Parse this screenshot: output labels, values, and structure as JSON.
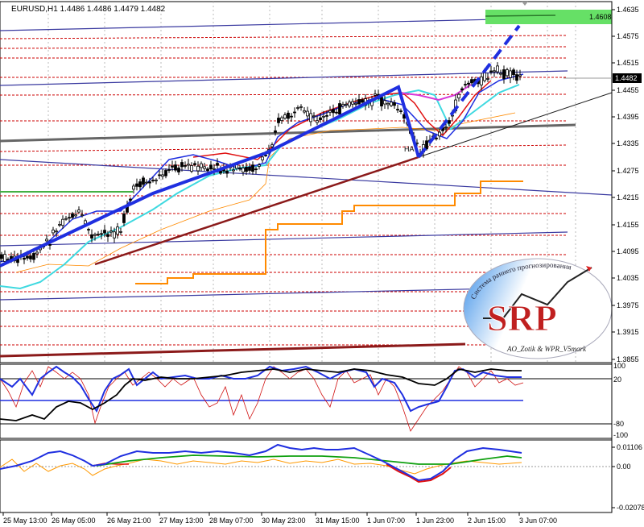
{
  "header": {
    "symbol_info": "EURUSD,H1  1.4486 1.4486 1.4479 1.4482"
  },
  "price_scale": {
    "ticks": [
      "1.4635",
      "1.4575",
      "1.4515",
      "1.4455",
      "1.4395",
      "1.4335",
      "1.4275",
      "1.4215",
      "1.4155",
      "1.4095",
      "1.4035",
      "1.3975",
      "1.3915",
      "1.3855"
    ],
    "current_price": "1.4482",
    "green_level": "1.4608"
  },
  "rsi_panel": {
    "ticks": [
      "100",
      "20",
      "-80",
      "-100"
    ]
  },
  "macd_panel": {
    "ticks": [
      "0.01106",
      "0.00",
      "-0.02078"
    ]
  },
  "time_axis": {
    "labels": [
      "25 May 13:00",
      "26 May 05:00",
      "26 May 21:00",
      "27 May 13:00",
      "28 May 07:00",
      "30 May 23:00",
      "31 May 15:00",
      "1 Jun 07:00",
      "1 Jun 23:00",
      "2 Jun 15:00",
      "3 Jun 07:00"
    ]
  },
  "annotations": {
    "pattern_label": "HA"
  },
  "watermark": {
    "letters": "SRP",
    "arc_text": "Система раннего прогнозирования",
    "footer_text": "AO_Zotik & WPR_V5mark"
  },
  "colors": {
    "background": "#ffffff",
    "candle": "#000000",
    "trend_blue": "#1f2fe0",
    "support_darkred": "#8b0000",
    "grid_red": "#cc0000",
    "level_green": "#66e066",
    "ma_cyan": "#3fd9e0",
    "ma_magenta": "#d838d8",
    "orange": "#ff8a00"
  }
}
